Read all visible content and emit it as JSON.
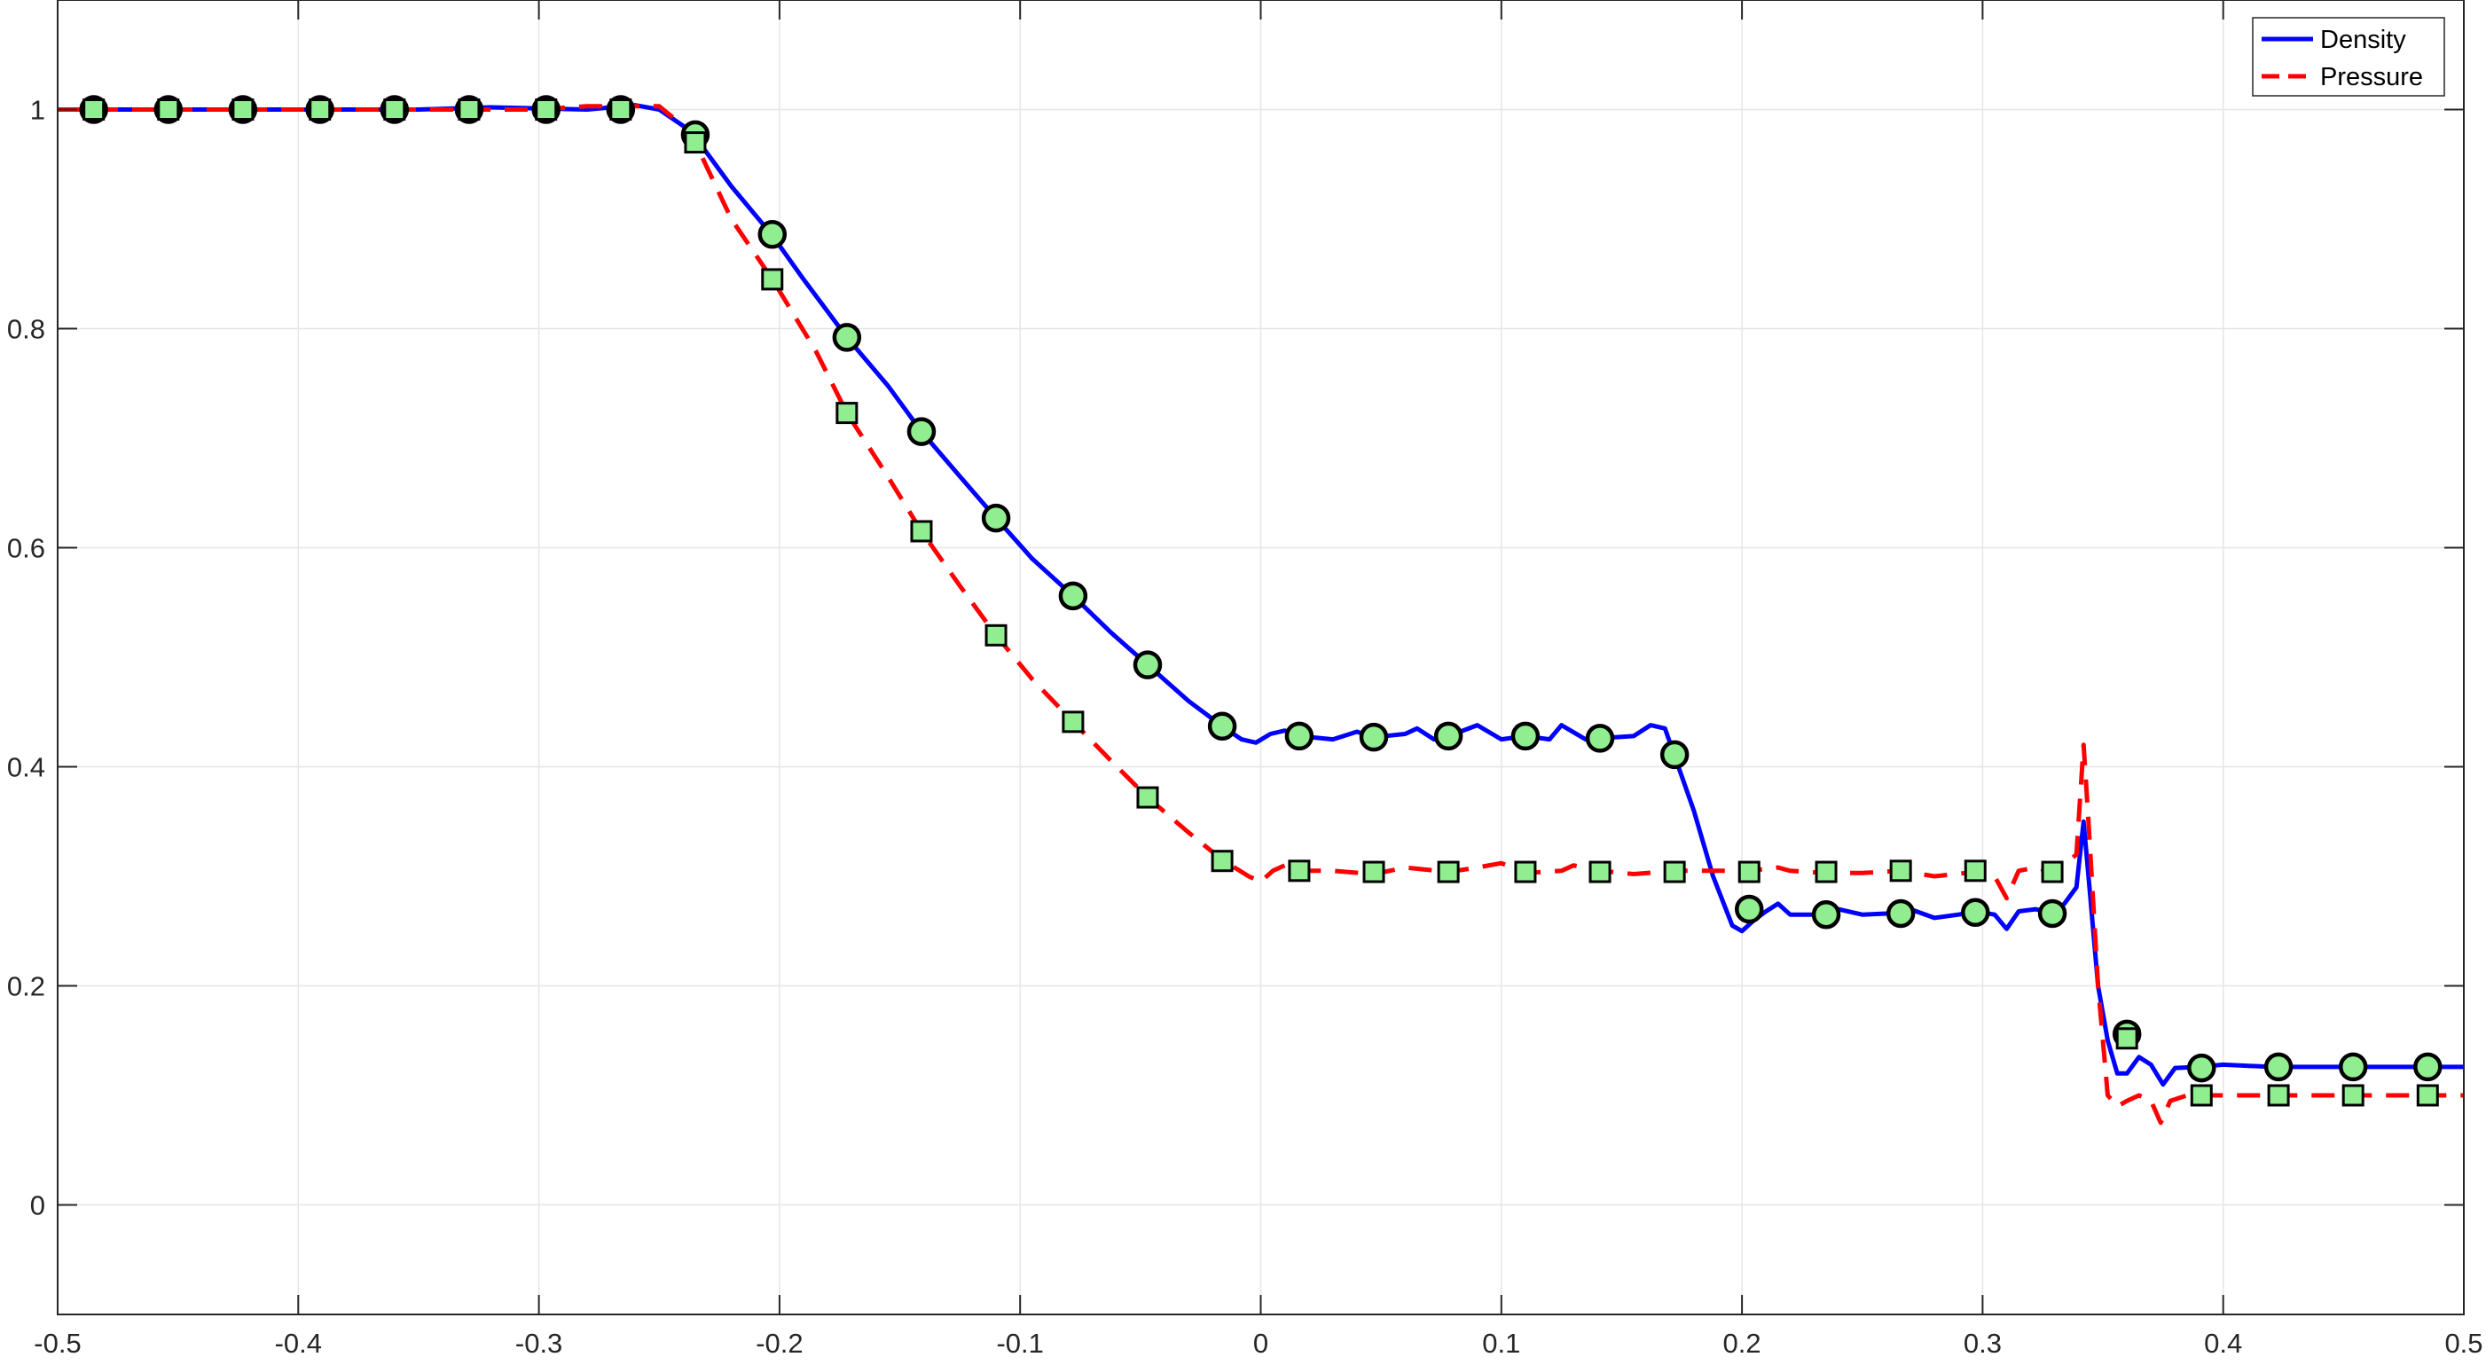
{
  "chart_data": {
    "type": "line",
    "title": "",
    "xlabel": "",
    "ylabel": "",
    "xlim": [
      -0.5,
      0.5
    ],
    "ylim": [
      -0.1,
      1.1
    ],
    "grid": true,
    "legend_position": "top-right",
    "x_ticks": [
      -0.5,
      -0.4,
      -0.3,
      -0.2,
      -0.1,
      0,
      0.1,
      0.2,
      0.3,
      0.4,
      0.5
    ],
    "x_tick_labels": [
      "-0.5",
      "-0.4",
      "-0.3",
      "-0.2",
      "-0.1",
      "0",
      "0.1",
      "0.2",
      "0.3",
      "0.4",
      "0.5"
    ],
    "y_ticks": [
      0,
      0.2,
      0.4,
      0.6,
      0.8,
      1
    ],
    "y_tick_labels": [
      "0",
      "0.2",
      "0.4",
      "0.6",
      "0.8",
      "1"
    ],
    "series": [
      {
        "name": "Density",
        "color": "#0000ff",
        "line_style": "solid",
        "curve": [
          [
            -0.5,
            1.0
          ],
          [
            -0.35,
            1.0
          ],
          [
            -0.32,
            1.002
          ],
          [
            -0.28,
            1.0
          ],
          [
            -0.26,
            1.004
          ],
          [
            -0.25,
            1.0
          ],
          [
            -0.24,
            0.985
          ],
          [
            -0.235,
            0.975
          ],
          [
            -0.22,
            0.93
          ],
          [
            -0.203,
            0.885
          ],
          [
            -0.19,
            0.845
          ],
          [
            -0.172,
            0.792
          ],
          [
            -0.155,
            0.748
          ],
          [
            -0.141,
            0.706
          ],
          [
            -0.125,
            0.665
          ],
          [
            -0.11,
            0.627
          ],
          [
            -0.095,
            0.59
          ],
          [
            -0.078,
            0.556
          ],
          [
            -0.062,
            0.522
          ],
          [
            -0.047,
            0.493
          ],
          [
            -0.03,
            0.46
          ],
          [
            -0.016,
            0.437
          ],
          [
            -0.008,
            0.425
          ],
          [
            -0.002,
            0.422
          ],
          [
            0.004,
            0.43
          ],
          [
            0.01,
            0.433
          ],
          [
            0.016,
            0.428
          ],
          [
            0.03,
            0.425
          ],
          [
            0.04,
            0.432
          ],
          [
            0.047,
            0.427
          ],
          [
            0.06,
            0.43
          ],
          [
            0.065,
            0.435
          ],
          [
            0.072,
            0.425
          ],
          [
            0.078,
            0.428
          ],
          [
            0.09,
            0.438
          ],
          [
            0.1,
            0.425
          ],
          [
            0.11,
            0.428
          ],
          [
            0.12,
            0.425
          ],
          [
            0.125,
            0.438
          ],
          [
            0.135,
            0.425
          ],
          [
            0.141,
            0.426
          ],
          [
            0.155,
            0.428
          ],
          [
            0.162,
            0.438
          ],
          [
            0.168,
            0.435
          ],
          [
            0.172,
            0.41
          ],
          [
            0.18,
            0.36
          ],
          [
            0.188,
            0.3
          ],
          [
            0.196,
            0.255
          ],
          [
            0.2,
            0.25
          ],
          [
            0.205,
            0.26
          ],
          [
            0.21,
            0.268
          ],
          [
            0.215,
            0.275
          ],
          [
            0.22,
            0.265
          ],
          [
            0.23,
            0.265
          ],
          [
            0.24,
            0.27
          ],
          [
            0.25,
            0.265
          ],
          [
            0.26,
            0.266
          ],
          [
            0.27,
            0.27
          ],
          [
            0.28,
            0.262
          ],
          [
            0.29,
            0.265
          ],
          [
            0.297,
            0.268
          ],
          [
            0.305,
            0.265
          ],
          [
            0.31,
            0.252
          ],
          [
            0.315,
            0.268
          ],
          [
            0.322,
            0.27
          ],
          [
            0.329,
            0.266
          ],
          [
            0.334,
            0.275
          ],
          [
            0.339,
            0.29
          ],
          [
            0.342,
            0.35
          ],
          [
            0.344,
            0.3
          ],
          [
            0.348,
            0.2
          ],
          [
            0.352,
            0.15
          ],
          [
            0.356,
            0.12
          ],
          [
            0.36,
            0.12
          ],
          [
            0.365,
            0.135
          ],
          [
            0.37,
            0.128
          ],
          [
            0.375,
            0.11
          ],
          [
            0.38,
            0.125
          ],
          [
            0.39,
            0.126
          ],
          [
            0.4,
            0.128
          ],
          [
            0.42,
            0.126
          ],
          [
            0.45,
            0.126
          ],
          [
            0.5,
            0.126
          ]
        ],
        "markers": {
          "shape": "circle",
          "fill": "#90ee90",
          "points": [
            [
              -0.485,
              1.0
            ],
            [
              -0.454,
              1.0
            ],
            [
              -0.423,
              1.0
            ],
            [
              -0.391,
              1.0
            ],
            [
              -0.36,
              1.0
            ],
            [
              -0.329,
              1.0
            ],
            [
              -0.297,
              1.0
            ],
            [
              -0.266,
              1.0
            ],
            [
              -0.235,
              0.977
            ],
            [
              -0.203,
              0.886
            ],
            [
              -0.172,
              0.792
            ],
            [
              -0.141,
              0.706
            ],
            [
              -0.11,
              0.627
            ],
            [
              -0.078,
              0.556
            ],
            [
              -0.047,
              0.493
            ],
            [
              -0.016,
              0.437
            ],
            [
              0.016,
              0.428
            ],
            [
              0.047,
              0.427
            ],
            [
              0.078,
              0.428
            ],
            [
              0.11,
              0.428
            ],
            [
              0.141,
              0.426
            ],
            [
              0.172,
              0.411
            ],
            [
              0.203,
              0.27
            ],
            [
              0.235,
              0.265
            ],
            [
              0.266,
              0.266
            ],
            [
              0.297,
              0.267
            ],
            [
              0.329,
              0.266
            ],
            [
              0.36,
              0.156
            ],
            [
              0.391,
              0.125
            ],
            [
              0.423,
              0.126
            ],
            [
              0.454,
              0.126
            ],
            [
              0.485,
              0.126
            ]
          ]
        }
      },
      {
        "name": "Pressure",
        "color": "#ff0000",
        "line_style": "dashed",
        "curve": [
          [
            -0.5,
            1.0
          ],
          [
            -0.33,
            1.0
          ],
          [
            -0.3,
            1.0
          ],
          [
            -0.28,
            1.003
          ],
          [
            -0.26,
            1.003
          ],
          [
            -0.25,
            1.003
          ],
          [
            -0.24,
            0.985
          ],
          [
            -0.235,
            0.97
          ],
          [
            -0.22,
            0.9
          ],
          [
            -0.203,
            0.845
          ],
          [
            -0.185,
            0.78
          ],
          [
            -0.172,
            0.723
          ],
          [
            -0.155,
            0.665
          ],
          [
            -0.141,
            0.615
          ],
          [
            -0.125,
            0.565
          ],
          [
            -0.11,
            0.52
          ],
          [
            -0.095,
            0.48
          ],
          [
            -0.078,
            0.441
          ],
          [
            -0.062,
            0.405
          ],
          [
            -0.047,
            0.372
          ],
          [
            -0.03,
            0.34
          ],
          [
            -0.016,
            0.315
          ],
          [
            -0.005,
            0.3
          ],
          [
            0.0,
            0.295
          ],
          [
            0.005,
            0.305
          ],
          [
            0.01,
            0.31
          ],
          [
            0.016,
            0.305
          ],
          [
            0.03,
            0.305
          ],
          [
            0.047,
            0.302
          ],
          [
            0.06,
            0.308
          ],
          [
            0.078,
            0.304
          ],
          [
            0.09,
            0.308
          ],
          [
            0.1,
            0.312
          ],
          [
            0.11,
            0.303
          ],
          [
            0.125,
            0.305
          ],
          [
            0.13,
            0.31
          ],
          [
            0.141,
            0.305
          ],
          [
            0.155,
            0.302
          ],
          [
            0.172,
            0.305
          ],
          [
            0.19,
            0.305
          ],
          [
            0.203,
            0.305
          ],
          [
            0.215,
            0.308
          ],
          [
            0.22,
            0.305
          ],
          [
            0.235,
            0.303
          ],
          [
            0.25,
            0.303
          ],
          [
            0.266,
            0.305
          ],
          [
            0.28,
            0.3
          ],
          [
            0.297,
            0.304
          ],
          [
            0.305,
            0.3
          ],
          [
            0.31,
            0.28
          ],
          [
            0.315,
            0.305
          ],
          [
            0.322,
            0.308
          ],
          [
            0.329,
            0.304
          ],
          [
            0.334,
            0.31
          ],
          [
            0.339,
            0.32
          ],
          [
            0.342,
            0.42
          ],
          [
            0.344,
            0.35
          ],
          [
            0.348,
            0.2
          ],
          [
            0.352,
            0.1
          ],
          [
            0.356,
            0.09
          ],
          [
            0.36,
            0.095
          ],
          [
            0.365,
            0.1
          ],
          [
            0.37,
            0.095
          ],
          [
            0.374,
            0.075
          ],
          [
            0.378,
            0.095
          ],
          [
            0.385,
            0.1
          ],
          [
            0.4,
            0.1
          ],
          [
            0.42,
            0.1
          ],
          [
            0.45,
            0.1
          ],
          [
            0.5,
            0.1
          ]
        ],
        "markers": {
          "shape": "square",
          "fill": "#90ee90",
          "points": [
            [
              -0.485,
              1.0
            ],
            [
              -0.454,
              1.0
            ],
            [
              -0.423,
              1.0
            ],
            [
              -0.391,
              1.0
            ],
            [
              -0.36,
              1.0
            ],
            [
              -0.329,
              1.0
            ],
            [
              -0.297,
              1.0
            ],
            [
              -0.266,
              1.0
            ],
            [
              -0.235,
              0.97
            ],
            [
              -0.203,
              0.845
            ],
            [
              -0.172,
              0.723
            ],
            [
              -0.141,
              0.615
            ],
            [
              -0.11,
              0.52
            ],
            [
              -0.078,
              0.441
            ],
            [
              -0.047,
              0.372
            ],
            [
              -0.016,
              0.314
            ],
            [
              0.016,
              0.305
            ],
            [
              0.047,
              0.304
            ],
            [
              0.078,
              0.304
            ],
            [
              0.11,
              0.304
            ],
            [
              0.141,
              0.304
            ],
            [
              0.172,
              0.304
            ],
            [
              0.203,
              0.304
            ],
            [
              0.235,
              0.304
            ],
            [
              0.266,
              0.305
            ],
            [
              0.297,
              0.305
            ],
            [
              0.329,
              0.304
            ],
            [
              0.36,
              0.152
            ],
            [
              0.391,
              0.1
            ],
            [
              0.423,
              0.1
            ],
            [
              0.454,
              0.1
            ],
            [
              0.485,
              0.1
            ]
          ]
        }
      }
    ]
  }
}
